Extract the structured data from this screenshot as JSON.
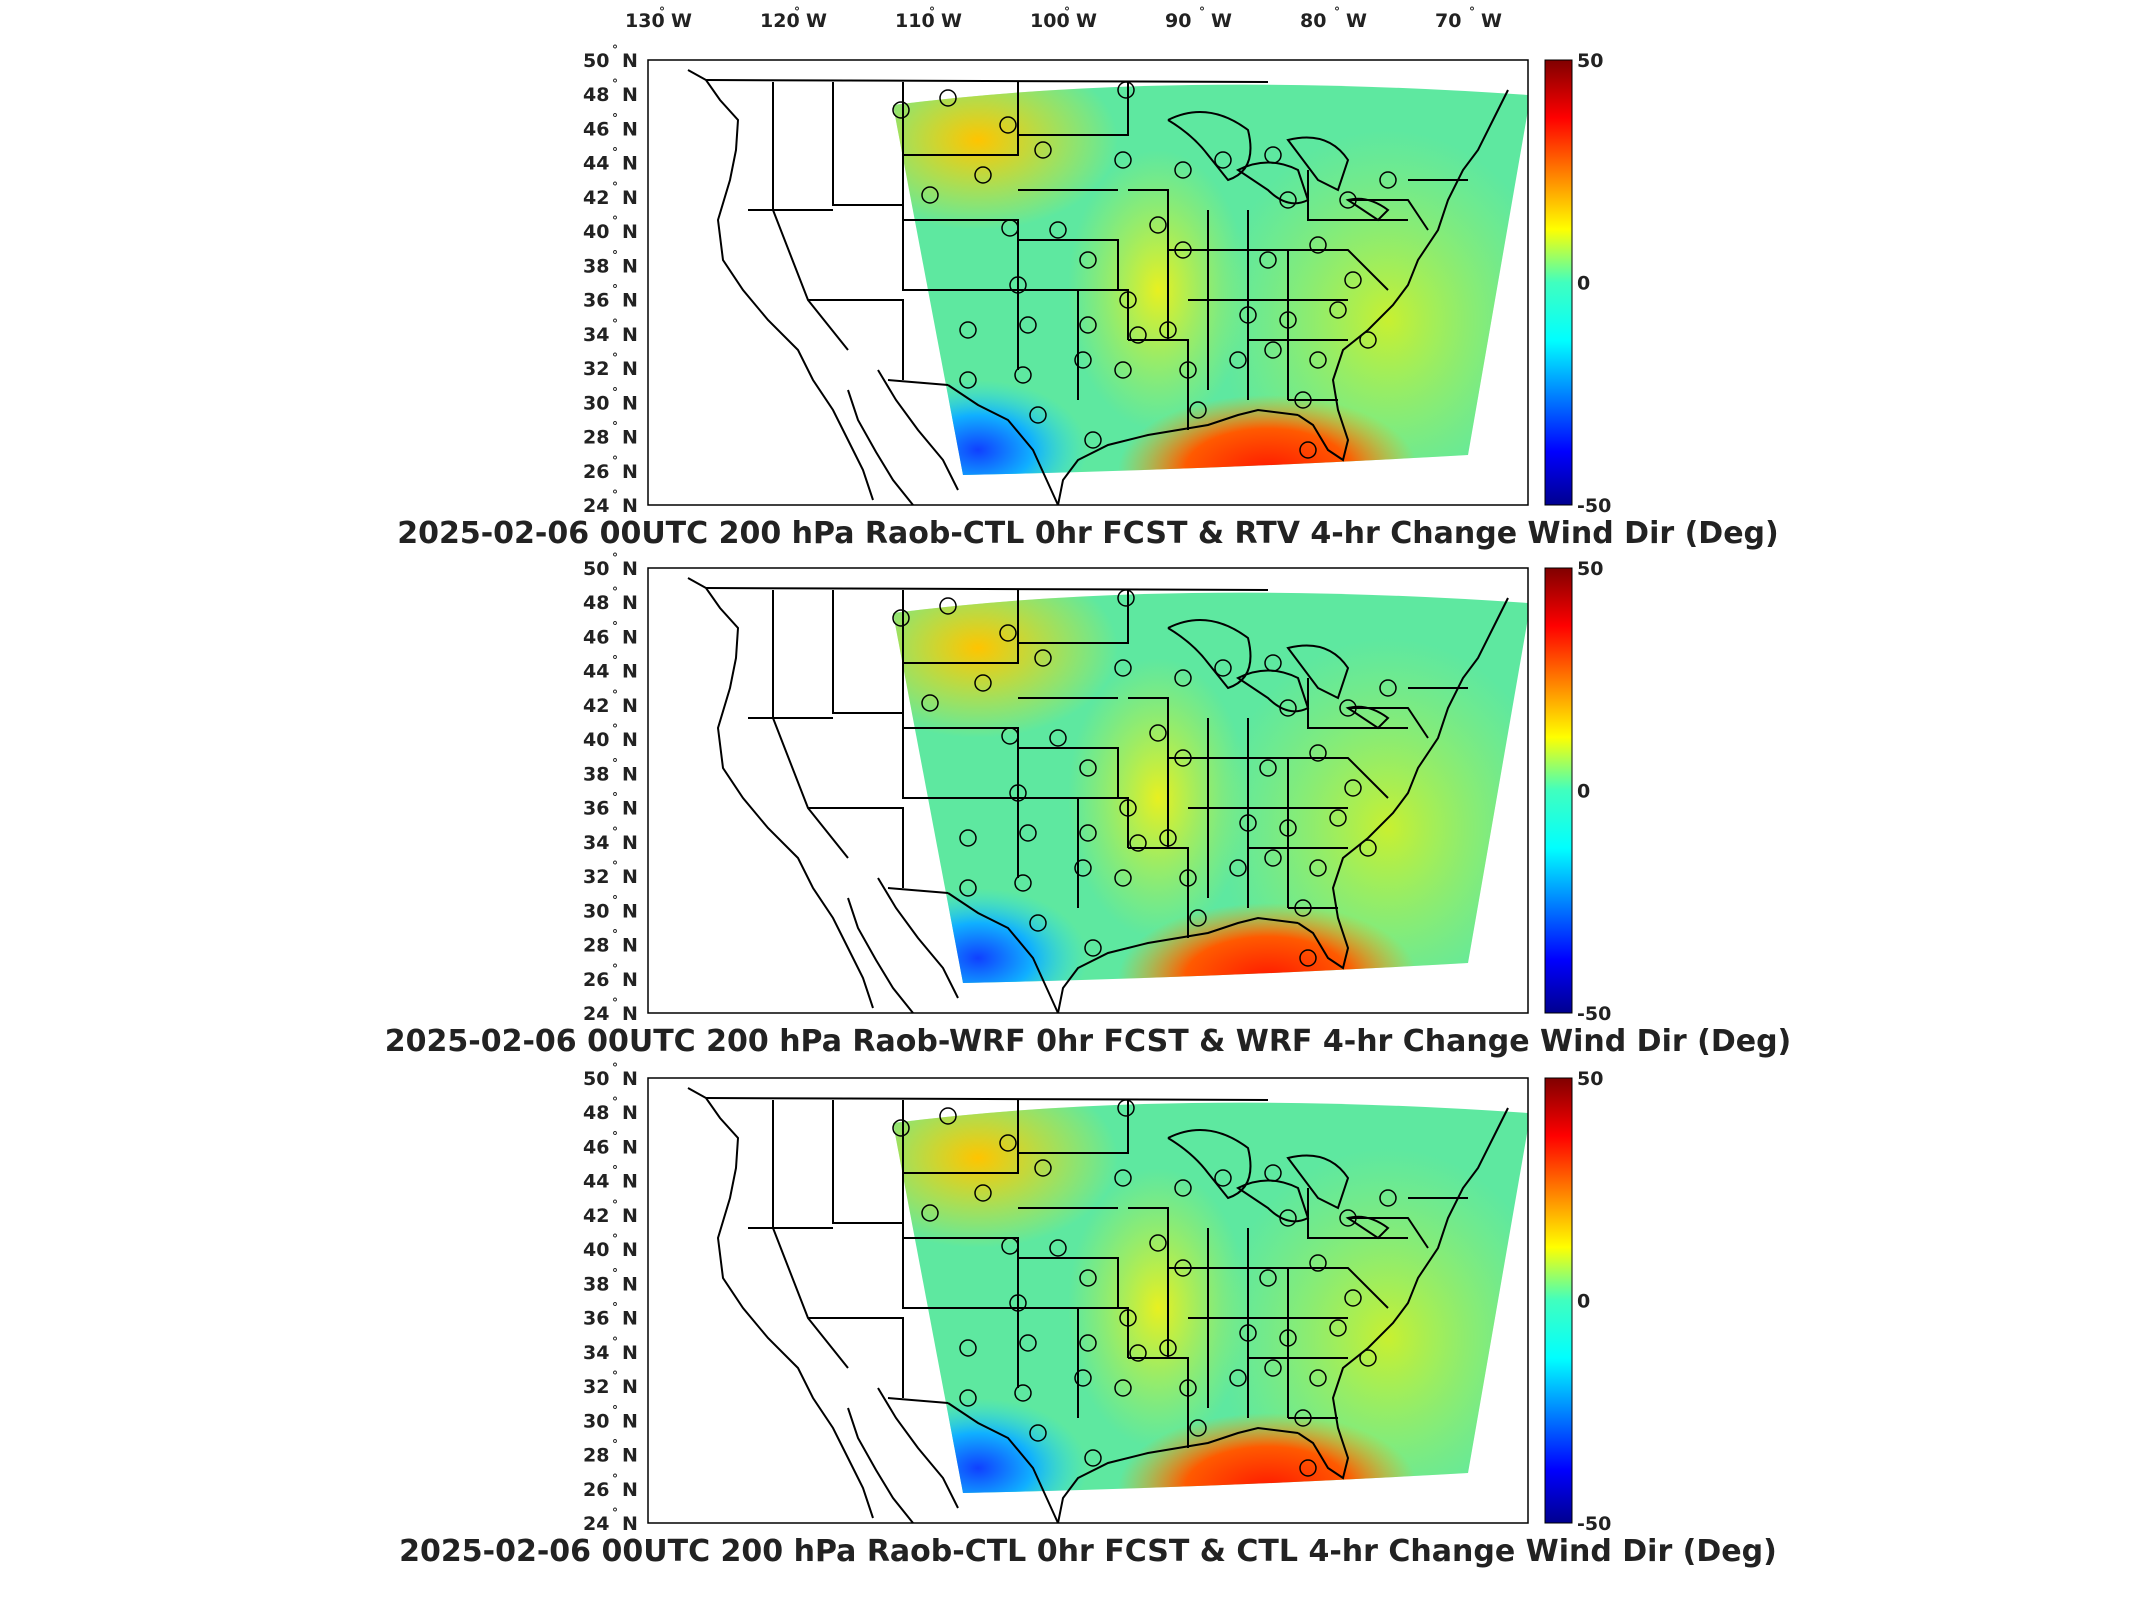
{
  "lon_labels": [
    {
      "deg": "130",
      "hemi": "W"
    },
    {
      "deg": "120",
      "hemi": "W"
    },
    {
      "deg": "110",
      "hemi": "W"
    },
    {
      "deg": "100",
      "hemi": "W"
    },
    {
      "deg": "90",
      "hemi": "W"
    },
    {
      "deg": "80",
      "hemi": "W"
    },
    {
      "deg": "70",
      "hemi": "W"
    }
  ],
  "lat_labels": [
    {
      "deg": "50",
      "hemi": "N"
    },
    {
      "deg": "48",
      "hemi": "N"
    },
    {
      "deg": "46",
      "hemi": "N"
    },
    {
      "deg": "44",
      "hemi": "N"
    },
    {
      "deg": "42",
      "hemi": "N"
    },
    {
      "deg": "40",
      "hemi": "N"
    },
    {
      "deg": "38",
      "hemi": "N"
    },
    {
      "deg": "36",
      "hemi": "N"
    },
    {
      "deg": "34",
      "hemi": "N"
    },
    {
      "deg": "32",
      "hemi": "N"
    },
    {
      "deg": "30",
      "hemi": "N"
    },
    {
      "deg": "28",
      "hemi": "N"
    },
    {
      "deg": "26",
      "hemi": "N"
    },
    {
      "deg": "24",
      "hemi": "N"
    }
  ],
  "colorbar": {
    "max_label": "50",
    "mid_label": "0",
    "min_label": "-50",
    "min": -50,
    "max": 50,
    "colormap": [
      "#00008f",
      "#0000ff",
      "#00ffff",
      "#ffff00",
      "#ff0000",
      "#800000"
    ]
  },
  "panels": [
    {
      "title": "2025-02-06 00UTC 200 hPa Raob-CTL 0hr FCST & RTV 4-hr Change Wind Dir (Deg)"
    },
    {
      "title": "2025-02-06 00UTC 200 hPa Raob-WRF 0hr FCST & WRF 4-hr Change Wind Dir (Deg)"
    },
    {
      "title": "2025-02-06 00UTC 200 hPa Raob-CTL 0hr FCST & CTL 4-hr Change Wind Dir (Deg)"
    }
  ],
  "colors": {
    "coast": "#000000",
    "field_base": "#5ee8a0"
  }
}
